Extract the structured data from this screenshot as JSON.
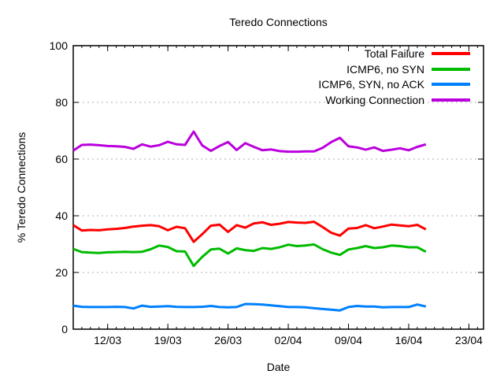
{
  "chart_data": {
    "type": "line",
    "title": "Teredo Connections",
    "xlabel": "Date",
    "ylabel": "% Teredo Connections",
    "ylim": [
      0,
      100
    ],
    "y_ticks": [
      0,
      20,
      40,
      60,
      80,
      100
    ],
    "x_domain_days": [
      0,
      47.7
    ],
    "x_minor_tick_every_days": 1,
    "x_ticks": [
      {
        "day": 4,
        "label": "12/03"
      },
      {
        "day": 11,
        "label": "19/03"
      },
      {
        "day": 18,
        "label": "26/03"
      },
      {
        "day": 25,
        "label": "02/04"
      },
      {
        "day": 32,
        "label": "09/04"
      },
      {
        "day": 39,
        "label": "16/04"
      }
    ],
    "x_last_tick": {
      "day": 46,
      "label": "23/04"
    },
    "grid": {
      "horizontal": true,
      "vertical": false,
      "style": "dashed",
      "color": "#b0b0b0",
      "at": [
        20,
        40,
        60,
        80
      ]
    },
    "legend_position": "top-right-inside",
    "axis_color": "#000000",
    "background_color": "#ffffff",
    "series": [
      {
        "name": "Total Failure",
        "color": "#ff0000",
        "values": [
          36.7,
          34.8,
          35.0,
          34.9,
          35.2,
          35.4,
          35.7,
          36.2,
          36.5,
          36.7,
          36.3,
          34.9,
          36.1,
          35.6,
          30.8,
          33.5,
          36.5,
          36.9,
          34.3,
          36.7,
          35.8,
          37.3,
          37.7,
          36.8,
          37.2,
          37.8,
          37.6,
          37.5,
          37.9,
          36.0,
          34.0,
          33.0,
          35.5,
          35.7,
          36.7,
          35.6,
          36.2,
          36.9,
          36.6,
          36.3,
          36.8,
          35.2
        ]
      },
      {
        "name": "ICMP6, no SYN",
        "color": "#00bb00",
        "values": [
          28.3,
          27.2,
          27.0,
          26.9,
          27.1,
          27.2,
          27.3,
          27.2,
          27.3,
          28.2,
          29.5,
          29.0,
          27.5,
          27.4,
          22.3,
          25.5,
          28.1,
          28.4,
          26.7,
          28.5,
          27.9,
          27.6,
          28.6,
          28.3,
          28.9,
          29.8,
          29.3,
          29.5,
          29.9,
          28.2,
          27.0,
          26.2,
          28.1,
          28.6,
          29.3,
          28.6,
          28.9,
          29.5,
          29.3,
          28.9,
          28.9,
          27.3
        ]
      },
      {
        "name": "ICMP6, SYN, no ACK",
        "color": "#0080ff",
        "values": [
          8.3,
          7.9,
          7.8,
          7.8,
          7.8,
          7.9,
          7.8,
          7.3,
          8.3,
          7.9,
          8.0,
          8.1,
          7.9,
          7.8,
          7.8,
          7.9,
          8.2,
          7.8,
          7.7,
          7.8,
          8.9,
          8.8,
          8.7,
          8.4,
          8.1,
          7.8,
          7.8,
          7.7,
          7.4,
          7.1,
          6.9,
          6.6,
          7.8,
          8.2,
          8.0,
          8.0,
          7.7,
          7.8,
          7.8,
          7.8,
          8.7,
          8.0
        ]
      },
      {
        "name": "Working Connection",
        "color": "#bb00dd",
        "values": [
          63.0,
          65.0,
          65.1,
          64.9,
          64.6,
          64.5,
          64.3,
          63.6,
          65.2,
          64.4,
          64.9,
          66.1,
          65.2,
          65.0,
          69.7,
          64.8,
          62.9,
          64.6,
          66.0,
          63.2,
          65.6,
          64.3,
          63.1,
          63.4,
          62.8,
          62.6,
          62.6,
          62.7,
          62.7,
          64.0,
          66.0,
          67.5,
          64.5,
          64.1,
          63.3,
          64.1,
          62.9,
          63.3,
          63.8,
          63.1,
          64.3,
          65.2
        ]
      }
    ]
  }
}
